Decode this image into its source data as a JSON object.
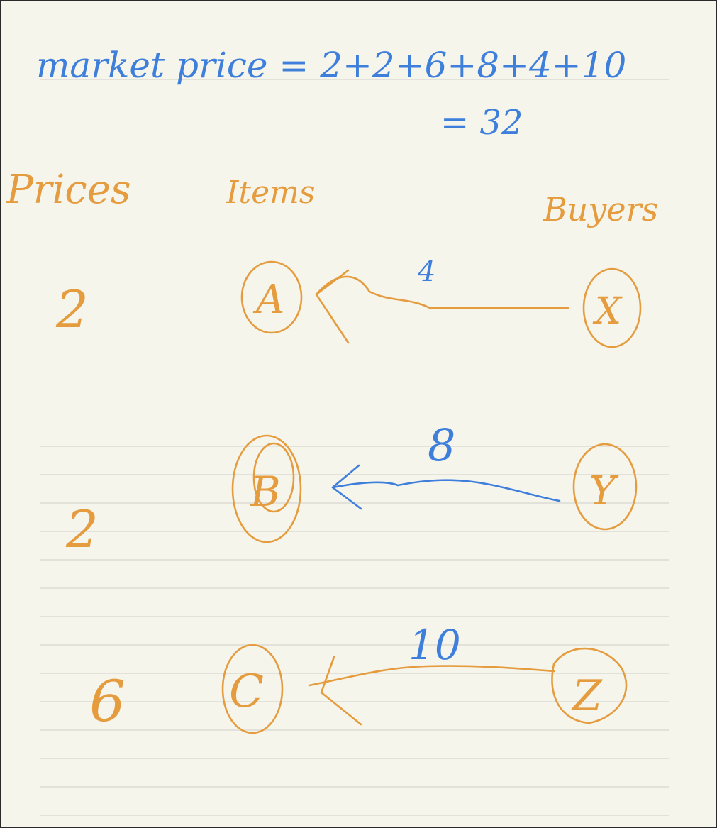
{
  "header": {
    "line1": "market price = 2+2+6+8+4+10",
    "line2": "= 32"
  },
  "columns": {
    "prices": "Prices",
    "items": "Items",
    "buyers": "Buyers"
  },
  "rows": [
    {
      "price": "2",
      "item": "A",
      "buyer": "X",
      "value": "4",
      "edge_color": "#e59c3f"
    },
    {
      "price": "2",
      "item": "B",
      "buyer": "Y",
      "value": "8",
      "edge_color": "#3f7fdc"
    },
    {
      "price": "6",
      "item": "C",
      "buyer": "Z",
      "value": "10",
      "edge_color": "#e59c3f"
    }
  ],
  "colors": {
    "ink_blue": "#3f7fdc",
    "ink_orange": "#e59c3f",
    "paper": "#f6f5ec",
    "rule": "#d6d6d0"
  }
}
